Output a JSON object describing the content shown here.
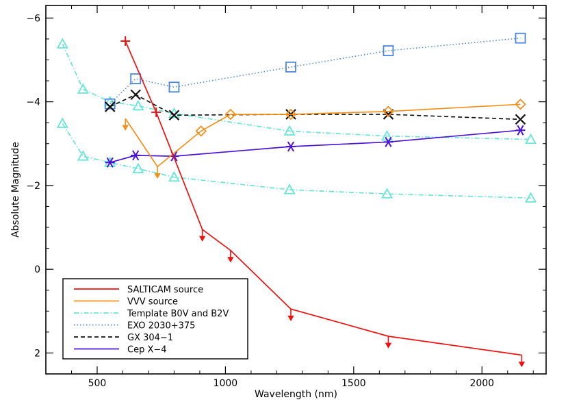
{
  "chart_data": {
    "type": "line",
    "title": "",
    "xlabel": "Wavelength (nm)",
    "ylabel": "Absolute Magnitude",
    "xlim": [
      300,
      2250
    ],
    "ylim": [
      2.5,
      -6.3
    ],
    "x_ticks": [
      500,
      1000,
      1500,
      2000
    ],
    "y_ticks": [
      -6,
      -4,
      -2,
      0,
      2
    ],
    "x_tick_labels": [
      "500",
      "1000",
      "1500",
      "2000"
    ],
    "y_tick_labels": [
      "−6",
      "−4",
      "−2",
      "0",
      "2"
    ],
    "legend_position": "bottom-left",
    "series": [
      {
        "name": "SALTICAM source",
        "color": "#ee1111",
        "line": "solid",
        "marker": "plus-then-upper-limit-arrows",
        "x": [
          610,
          730,
          910,
          1020,
          1255,
          1635,
          2155
        ],
        "y": [
          -5.45,
          -3.75,
          -0.95,
          -0.45,
          0.95,
          1.6,
          2.05
        ],
        "upper_limit": [
          false,
          false,
          true,
          true,
          true,
          true,
          true
        ]
      },
      {
        "name": "VVV source",
        "color": "#f39019",
        "line": "solid",
        "marker": "diamond",
        "x": [
          610,
          735,
          905,
          1020,
          1255,
          1635,
          2150
        ],
        "y": [
          -3.6,
          -2.45,
          -3.3,
          -3.7,
          -3.7,
          -3.77,
          -3.94
        ],
        "upper_limit": [
          true,
          true,
          false,
          false,
          false,
          false,
          false
        ]
      },
      {
        "name": "Template B0V and B2V",
        "color": "#66e6d6",
        "line": "dash-dot",
        "marker": "triangle",
        "x": [
          365,
          445,
          550,
          660,
          800,
          1250,
          1630,
          2190
        ],
        "y": [
          -5.38,
          -4.3,
          -4.0,
          -3.9,
          -3.72,
          -3.3,
          -3.18,
          -3.1
        ],
        "y2": [
          -3.48,
          -2.7,
          -2.55,
          -2.4,
          -2.2,
          -1.9,
          -1.8,
          -1.7
        ]
      },
      {
        "name": "EXO 2030+375",
        "color": "#4a86e0",
        "line": "dotted",
        "marker": "square",
        "x": [
          550,
          650,
          800,
          1255,
          1635,
          2150
        ],
        "y": [
          -3.95,
          -4.55,
          -4.35,
          -4.83,
          -5.22,
          -5.52
        ]
      },
      {
        "name": "GX 304−1",
        "color": "#111111",
        "line": "dashed",
        "marker": "x",
        "x": [
          550,
          650,
          800,
          1255,
          1635,
          2150
        ],
        "y": [
          -3.88,
          -4.17,
          -3.68,
          -3.7,
          -3.7,
          -3.58
        ]
      },
      {
        "name": "Cep X−4",
        "color": "#4a12d4",
        "line": "solid",
        "marker": "asterisk",
        "x": [
          550,
          650,
          800,
          1255,
          1635,
          2150
        ],
        "y": [
          -2.55,
          -2.72,
          -2.7,
          -2.93,
          -3.04,
          -3.32
        ]
      }
    ]
  }
}
